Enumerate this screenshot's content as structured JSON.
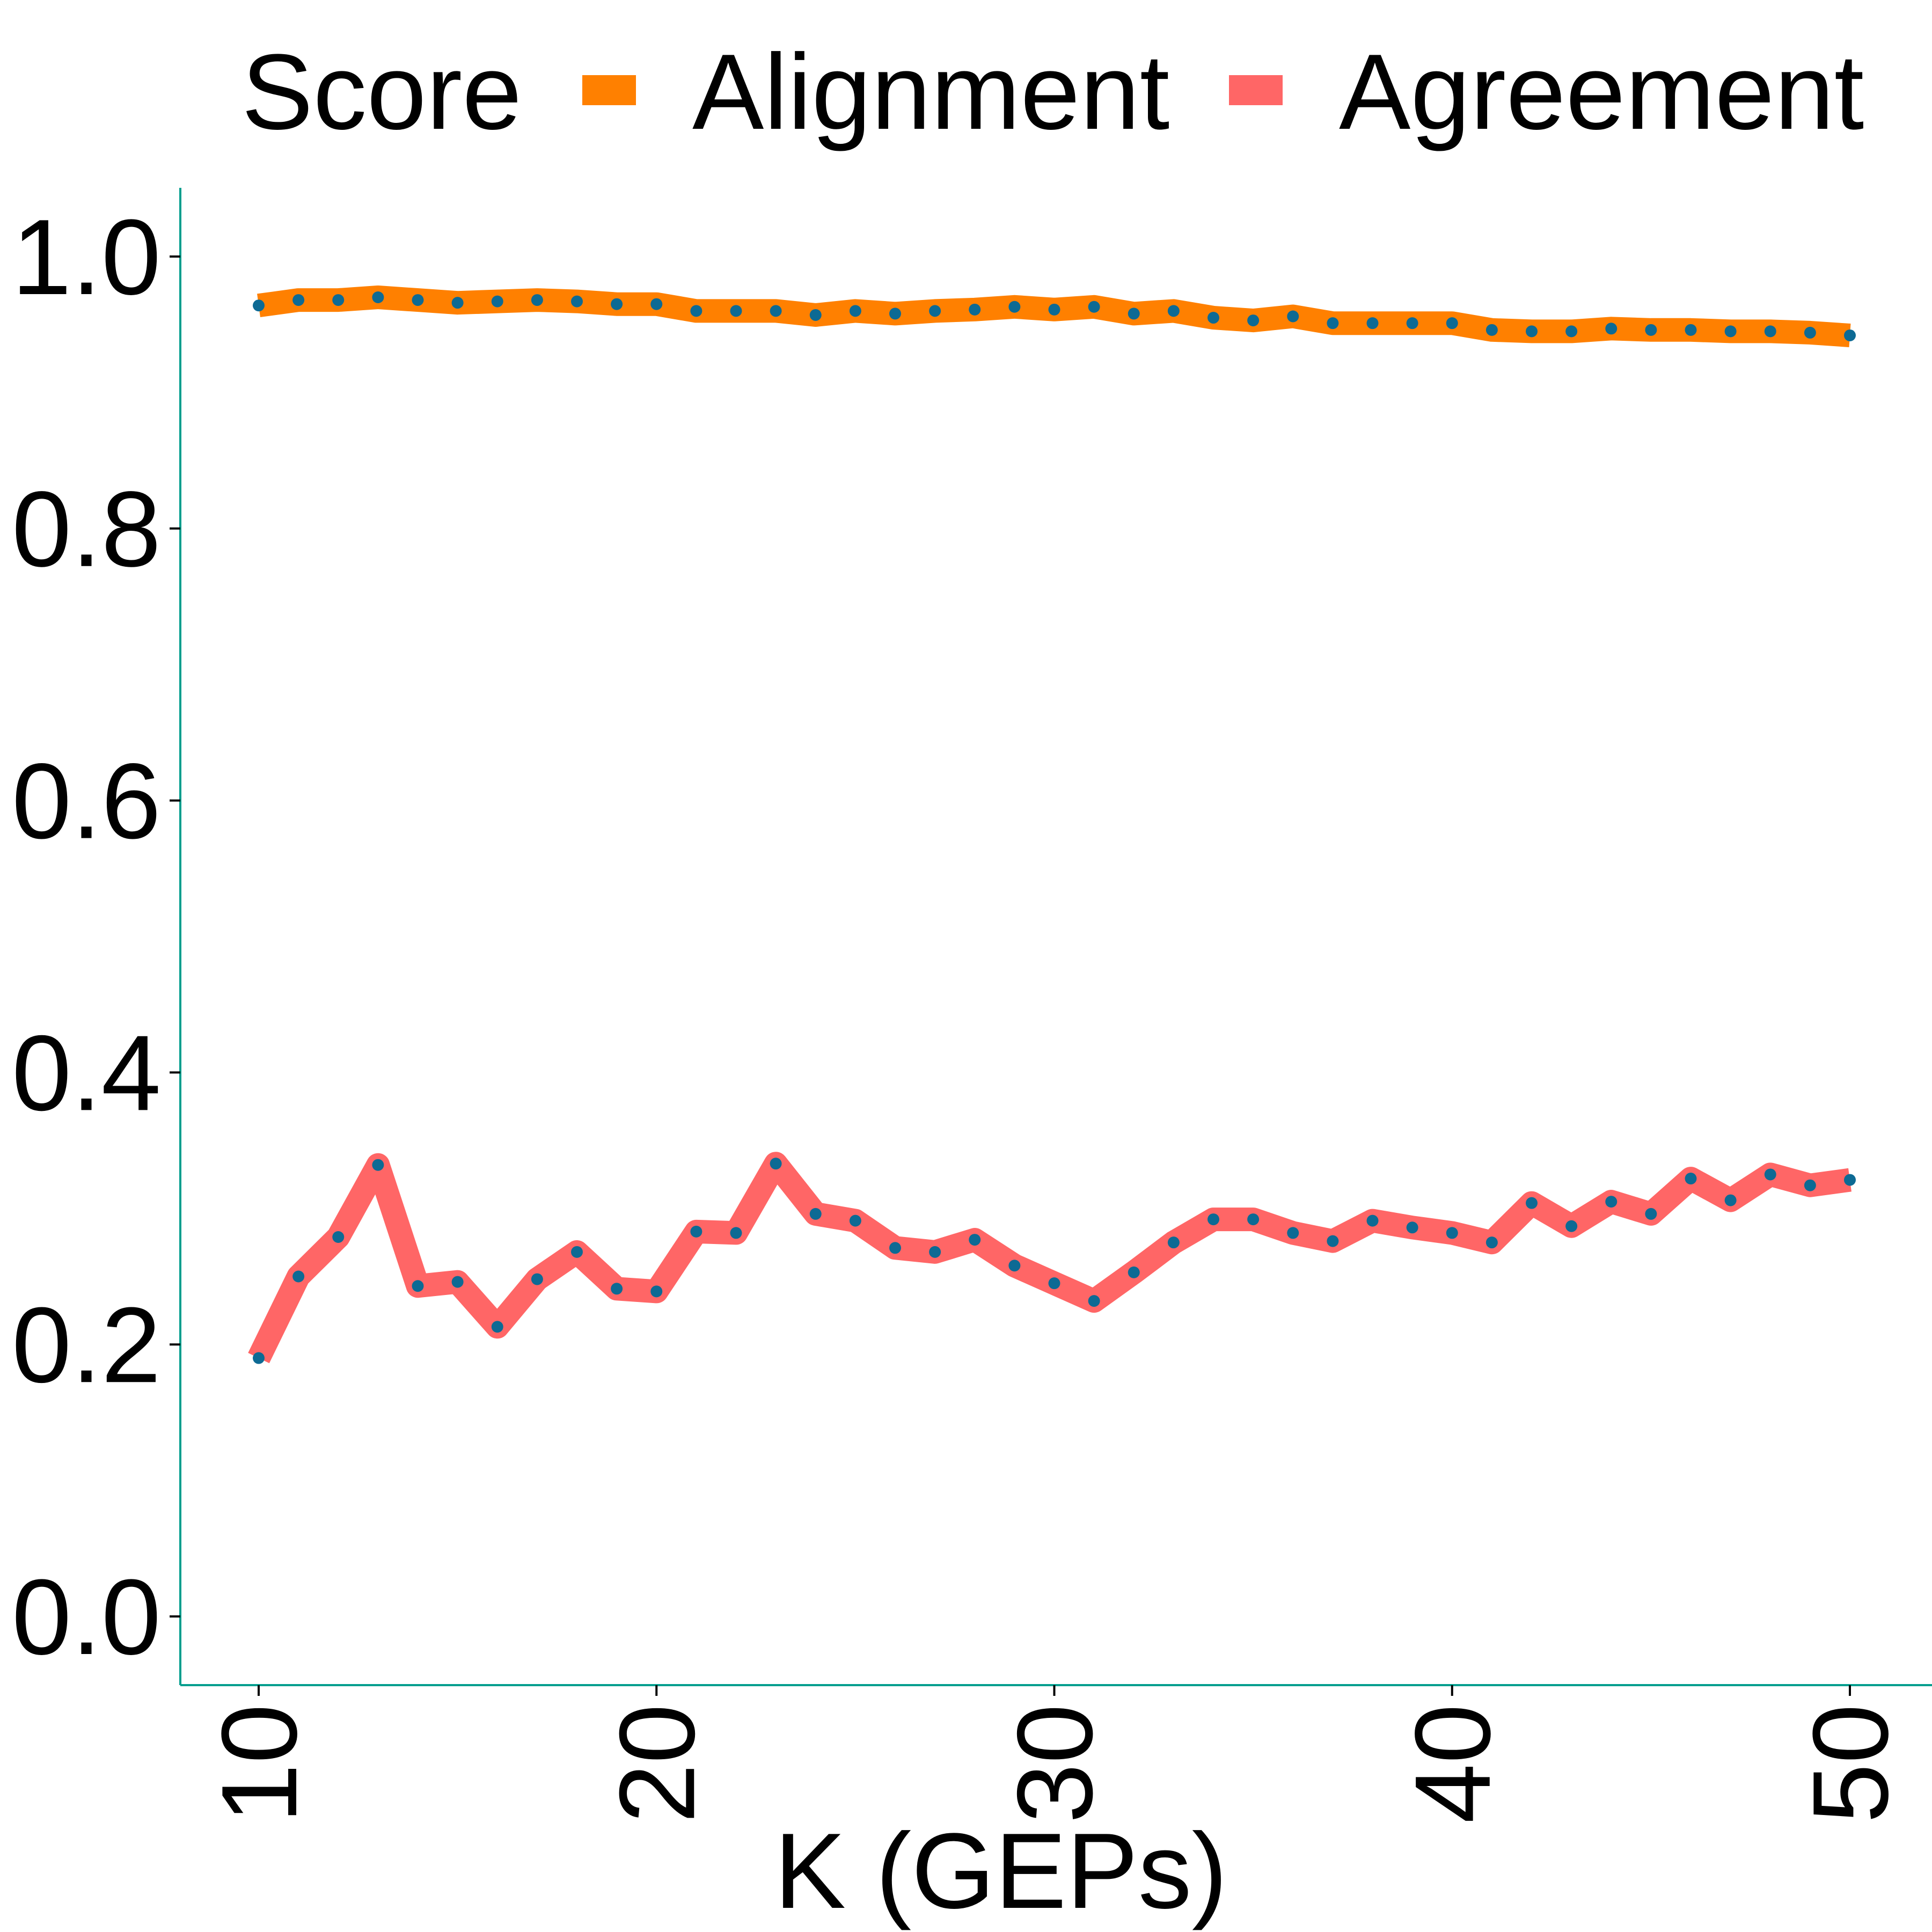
{
  "chart_data": {
    "type": "line",
    "title": "",
    "xlabel": "K (GEPs)",
    "ylabel": "",
    "xlim": [
      8,
      52
    ],
    "ylim": [
      -0.05,
      1.05
    ],
    "x_ticks": [
      10,
      20,
      30,
      40,
      50
    ],
    "y_ticks": [
      0.0,
      0.2,
      0.4,
      0.6,
      0.8,
      1.0
    ],
    "x_tick_labels": [
      "10",
      "20",
      "30",
      "40",
      "50"
    ],
    "y_tick_labels": [
      "0.0",
      "0.2",
      "0.4",
      "0.6",
      "0.8",
      "1.0"
    ],
    "grid": false,
    "legend": {
      "position": "top",
      "title": "Score",
      "entries": [
        {
          "label": "Alignment",
          "color": "#FF8000"
        },
        {
          "label": "Agreement",
          "color": "#FF6666"
        }
      ]
    },
    "x": [
      10,
      11,
      12,
      13,
      14,
      15,
      16,
      17,
      18,
      19,
      20,
      21,
      22,
      23,
      24,
      25,
      26,
      27,
      28,
      29,
      30,
      31,
      32,
      33,
      34,
      35,
      36,
      37,
      38,
      39,
      40,
      41,
      42,
      43,
      44,
      45,
      46,
      47,
      48,
      49,
      50
    ],
    "series": [
      {
        "name": "Alignment",
        "color": "#FF8000",
        "marker_color": "#0D6A94",
        "values": [
          0.964,
          0.968,
          0.968,
          0.97,
          0.968,
          0.966,
          0.967,
          0.968,
          0.967,
          0.965,
          0.965,
          0.96,
          0.96,
          0.96,
          0.957,
          0.96,
          0.958,
          0.96,
          0.961,
          0.963,
          0.961,
          0.963,
          0.958,
          0.96,
          0.955,
          0.953,
          0.956,
          0.951,
          0.951,
          0.951,
          0.951,
          0.946,
          0.945,
          0.945,
          0.947,
          0.946,
          0.946,
          0.945,
          0.945,
          0.944,
          0.942
        ]
      },
      {
        "name": "Agreement",
        "color": "#FF6666",
        "marker_color": "#0D6A94",
        "values": [
          0.19,
          0.25,
          0.279,
          0.332,
          0.243,
          0.246,
          0.213,
          0.248,
          0.268,
          0.241,
          0.239,
          0.283,
          0.282,
          0.333,
          0.296,
          0.291,
          0.271,
          0.268,
          0.277,
          0.258,
          0.245,
          0.232,
          0.253,
          0.275,
          0.292,
          0.292,
          0.282,
          0.276,
          0.291,
          0.286,
          0.282,
          0.275,
          0.304,
          0.287,
          0.305,
          0.296,
          0.322,
          0.306,
          0.325,
          0.317,
          0.321
        ]
      }
    ]
  }
}
